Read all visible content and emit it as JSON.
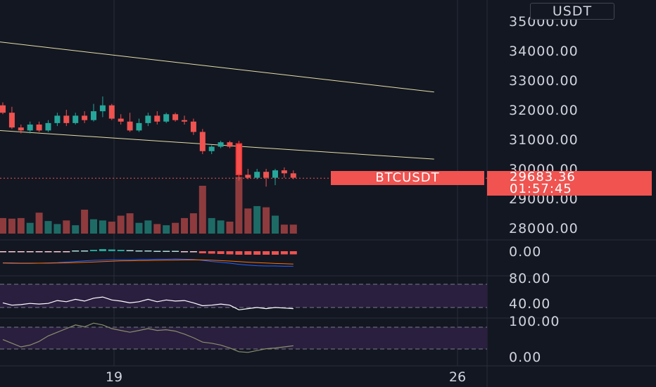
{
  "price_axis": {
    "unit": "USDT",
    "labels": [
      "35000.00",
      "34000.00",
      "33000.00",
      "32000.00",
      "31000.00",
      "30000.00",
      "29000.00",
      "28000.00"
    ]
  },
  "macd_axis": {
    "labels": [
      "0.00"
    ]
  },
  "rsi_axis": {
    "labels": [
      "80.00",
      "40.00"
    ]
  },
  "stoch_axis": {
    "labels": [
      "100.00",
      "0.00"
    ]
  },
  "time_axis": {
    "labels": [
      "19",
      "26"
    ]
  },
  "last_price": {
    "symbol": "BTCUSDT",
    "price": "29683.36",
    "countdown": "01:57:45"
  },
  "colors": {
    "background": "#131722",
    "up": "#26a69a",
    "down": "#ef5350",
    "trendline": "#e6dfa6",
    "band": "#2a1f3f"
  },
  "chart_data": {
    "type": "candlestick",
    "title": "",
    "symbol": "BTCUSDT",
    "ylim": [
      27700,
      35300
    ],
    "candles": [
      {
        "o": 32150,
        "h": 32250,
        "l": 31850,
        "c": 31900
      },
      {
        "o": 31900,
        "h": 32100,
        "l": 31350,
        "c": 31400
      },
      {
        "o": 31400,
        "h": 31500,
        "l": 31200,
        "c": 31300
      },
      {
        "o": 31300,
        "h": 31600,
        "l": 31200,
        "c": 31500
      },
      {
        "o": 31500,
        "h": 31600,
        "l": 31250,
        "c": 31300
      },
      {
        "o": 31300,
        "h": 31650,
        "l": 31250,
        "c": 31550
      },
      {
        "o": 31550,
        "h": 31900,
        "l": 31450,
        "c": 31800
      },
      {
        "o": 31800,
        "h": 32000,
        "l": 31450,
        "c": 31550
      },
      {
        "o": 31550,
        "h": 31900,
        "l": 31500,
        "c": 31800
      },
      {
        "o": 31800,
        "h": 31950,
        "l": 31550,
        "c": 31650
      },
      {
        "o": 31650,
        "h": 32200,
        "l": 31600,
        "c": 31950
      },
      {
        "o": 31950,
        "h": 32450,
        "l": 31750,
        "c": 32150
      },
      {
        "o": 32150,
        "h": 32200,
        "l": 31650,
        "c": 31700
      },
      {
        "o": 31700,
        "h": 31850,
        "l": 31500,
        "c": 31600
      },
      {
        "o": 31600,
        "h": 31900,
        "l": 31250,
        "c": 31300
      },
      {
        "o": 31300,
        "h": 31700,
        "l": 31250,
        "c": 31550
      },
      {
        "o": 31550,
        "h": 31900,
        "l": 31450,
        "c": 31800
      },
      {
        "o": 31800,
        "h": 31950,
        "l": 31500,
        "c": 31600
      },
      {
        "o": 31600,
        "h": 31900,
        "l": 31550,
        "c": 31850
      },
      {
        "o": 31850,
        "h": 31900,
        "l": 31600,
        "c": 31650
      },
      {
        "o": 31650,
        "h": 31800,
        "l": 31500,
        "c": 31600
      },
      {
        "o": 31600,
        "h": 31700,
        "l": 31150,
        "c": 31250
      },
      {
        "o": 31250,
        "h": 31350,
        "l": 30500,
        "c": 30600
      },
      {
        "o": 30600,
        "h": 30800,
        "l": 30500,
        "c": 30750
      },
      {
        "o": 30750,
        "h": 30950,
        "l": 30700,
        "c": 30900
      },
      {
        "o": 30900,
        "h": 30950,
        "l": 30700,
        "c": 30750
      },
      {
        "o": 30850,
        "h": 30950,
        "l": 29600,
        "c": 29800
      },
      {
        "o": 29800,
        "h": 30000,
        "l": 29650,
        "c": 29700
      },
      {
        "o": 29700,
        "h": 30000,
        "l": 29650,
        "c": 29900
      },
      {
        "o": 29900,
        "h": 30000,
        "l": 29400,
        "c": 29700
      },
      {
        "o": 29700,
        "h": 30000,
        "l": 29450,
        "c": 29950
      },
      {
        "o": 29950,
        "h": 30050,
        "l": 29700,
        "c": 29850
      },
      {
        "o": 29850,
        "h": 29950,
        "l": 29650,
        "c": 29700
      }
    ],
    "volumes": [
      0.26,
      0.25,
      0.26,
      0.18,
      0.35,
      0.21,
      0.16,
      0.22,
      0.14,
      0.4,
      0.24,
      0.22,
      0.2,
      0.3,
      0.34,
      0.18,
      0.22,
      0.16,
      0.14,
      0.18,
      0.26,
      0.34,
      0.8,
      0.26,
      0.22,
      0.2,
      0.95,
      0.42,
      0.46,
      0.44,
      0.3,
      0.15,
      0.15
    ],
    "trendlines": [
      {
        "start": [
          -0.5,
          34300
        ],
        "end": [
          47.5,
          32600
        ]
      },
      {
        "start": [
          -0.5,
          31300
        ],
        "end": [
          47.5,
          30330
        ]
      }
    ],
    "last_price_value": 29683.36,
    "macd": {
      "histogram": [
        -0.1,
        -0.1,
        -0.1,
        -0.2,
        -0.2,
        -0.2,
        -0.1,
        -0.1,
        0.2,
        0.2,
        0.4,
        0.6,
        0.5,
        0.4,
        0.3,
        0.2,
        0.2,
        0.1,
        0.1,
        0.1,
        -0.1,
        -0.3,
        -0.6,
        -0.7,
        -0.8,
        -0.9,
        -1.0,
        -1.0,
        -1.0,
        -1.0,
        -1.0,
        -0.9,
        -0.9
      ],
      "macd_line": [
        -0.5,
        -0.6,
        -0.6,
        -0.6,
        -0.5,
        -0.4,
        -0.3,
        -0.1,
        0.1,
        0.3,
        0.5,
        0.6,
        0.7,
        0.7,
        0.7,
        0.8,
        0.8,
        0.9,
        0.9,
        1.0,
        0.9,
        0.8,
        0.5,
        0.1,
        -0.2,
        -0.5,
        -0.9,
        -1.2,
        -1.4,
        -1.5,
        -1.5,
        -1.6,
        -1.6
      ],
      "signal_line": [
        -0.4,
        -0.45,
        -0.5,
        -0.5,
        -0.5,
        -0.5,
        -0.45,
        -0.4,
        -0.3,
        -0.2,
        -0.1,
        0.05,
        0.2,
        0.3,
        0.35,
        0.4,
        0.45,
        0.5,
        0.55,
        0.6,
        0.65,
        0.7,
        0.65,
        0.55,
        0.4,
        0.25,
        0.05,
        -0.15,
        -0.3,
        -0.45,
        -0.6,
        -0.7,
        -0.8
      ]
    },
    "rsi": {
      "band": [
        30,
        70
      ],
      "values": [
        48,
        44,
        45,
        47,
        46,
        47,
        52,
        50,
        54,
        51,
        56,
        58,
        53,
        51,
        48,
        50,
        54,
        50,
        53,
        51,
        52,
        48,
        43,
        44,
        46,
        44,
        36,
        38,
        40,
        38,
        40,
        39,
        38
      ]
    },
    "stoch": {
      "band": [
        20,
        80
      ],
      "values": [
        45,
        35,
        25,
        30,
        40,
        55,
        65,
        75,
        85,
        80,
        90,
        85,
        75,
        70,
        65,
        70,
        75,
        70,
        72,
        68,
        60,
        50,
        38,
        35,
        30,
        22,
        12,
        10,
        15,
        20,
        22,
        25,
        28
      ]
    }
  }
}
